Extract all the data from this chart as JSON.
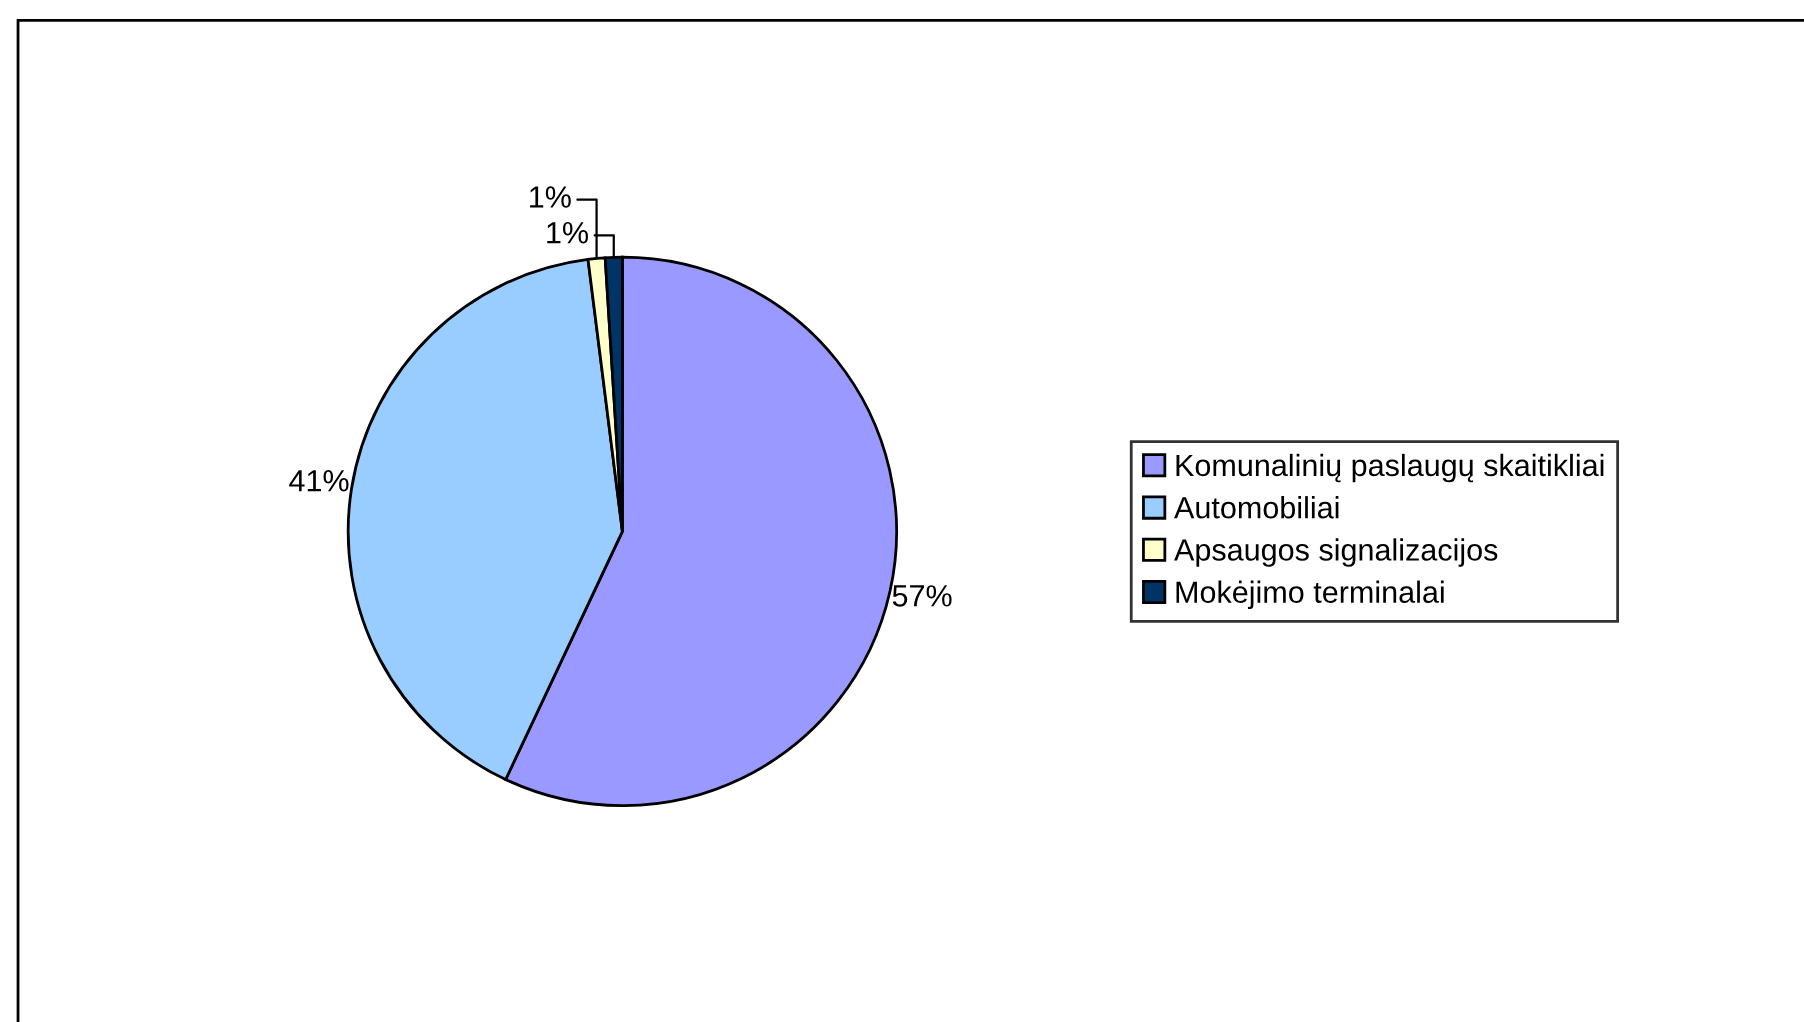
{
  "chart_data": {
    "type": "pie",
    "categories": [
      "Komunalinių paslaugų skaitikliai",
      "Automobiliai",
      "Apsaugos signalizacijos",
      "Mokėjimo terminalai"
    ],
    "values": [
      57,
      41,
      1,
      1
    ],
    "colors": [
      "#9999ff",
      "#99ccff",
      "#ffffcc",
      "#003366"
    ],
    "value_labels": [
      "57%",
      "41%",
      "1%",
      "1%"
    ],
    "legend": "right"
  }
}
